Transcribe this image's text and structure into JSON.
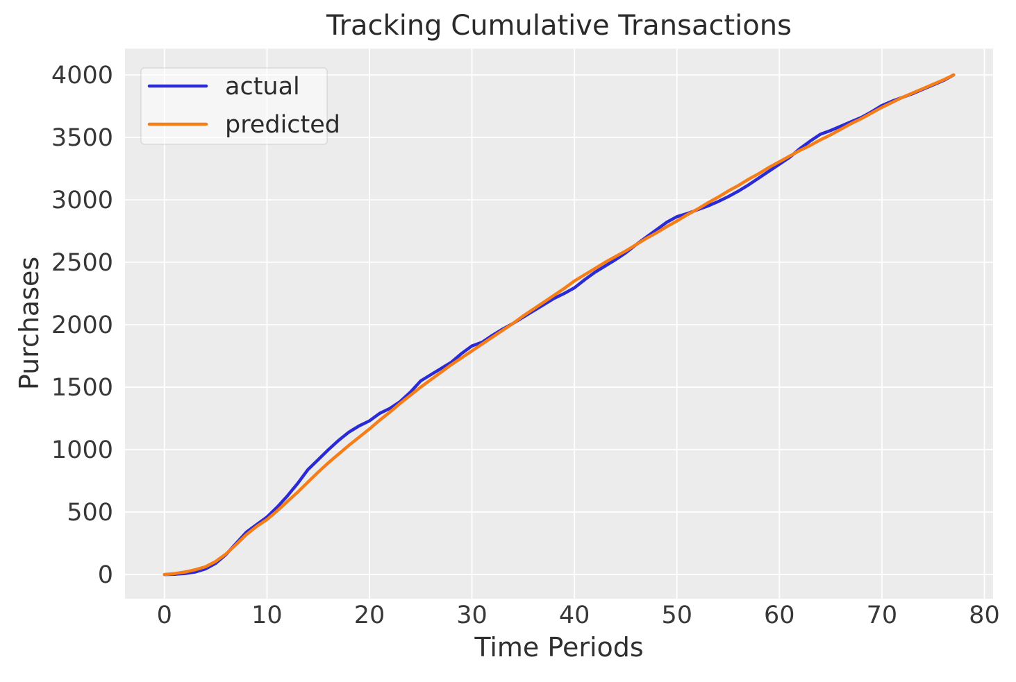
{
  "chart": {
    "title": "Tracking Cumulative Transactions",
    "xlabel": "Time Periods",
    "ylabel": "Purchases",
    "colors": {
      "figure_bg": "#ffffff",
      "plot_bg": "#ececec",
      "grid": "#ffffff",
      "actual_line": "#2b2bd6",
      "predicted_line": "#f57e19",
      "text": "#2b2b2b"
    }
  },
  "chart_data": {
    "type": "line",
    "title": "Tracking Cumulative Transactions",
    "xlabel": "Time Periods",
    "ylabel": "Purchases",
    "grid": true,
    "legend_position": "upper left",
    "xlim": [
      -3.85,
      80.85
    ],
    "ylim": [
      -194,
      4211
    ],
    "xticks": [
      0,
      10,
      20,
      30,
      40,
      50,
      60,
      70,
      80
    ],
    "yticks": [
      0,
      500,
      1000,
      1500,
      2000,
      2500,
      3000,
      3500,
      4000
    ],
    "x": [
      0,
      1,
      2,
      3,
      4,
      5,
      6,
      7,
      8,
      9,
      10,
      11,
      12,
      13,
      14,
      15,
      16,
      17,
      18,
      19,
      20,
      21,
      22,
      23,
      24,
      25,
      26,
      27,
      28,
      29,
      30,
      31,
      32,
      33,
      34,
      35,
      36,
      37,
      38,
      39,
      40,
      41,
      42,
      43,
      44,
      45,
      46,
      47,
      48,
      49,
      50,
      51,
      52,
      53,
      54,
      55,
      56,
      57,
      58,
      59,
      60,
      61,
      62,
      63,
      64,
      65,
      66,
      67,
      68,
      69,
      70,
      71,
      72,
      73,
      74,
      75,
      76,
      77
    ],
    "series": [
      {
        "name": "actual",
        "color": "#2b2bd6",
        "values": [
          0,
          2,
          8,
          20,
          45,
          90,
          160,
          250,
          340,
          400,
          460,
          540,
          630,
          730,
          840,
          920,
          1000,
          1075,
          1140,
          1190,
          1230,
          1290,
          1330,
          1385,
          1460,
          1550,
          1600,
          1650,
          1700,
          1770,
          1830,
          1860,
          1915,
          1965,
          2010,
          2060,
          2110,
          2160,
          2210,
          2250,
          2295,
          2360,
          2420,
          2470,
          2520,
          2575,
          2640,
          2700,
          2760,
          2820,
          2865,
          2890,
          2920,
          2950,
          2985,
          3025,
          3070,
          3120,
          3175,
          3230,
          3285,
          3340,
          3410,
          3470,
          3525,
          3555,
          3590,
          3625,
          3660,
          3705,
          3755,
          3790,
          3820,
          3850,
          3885,
          3920,
          3955,
          4000
        ]
      },
      {
        "name": "predicted",
        "color": "#f57e19",
        "values": [
          0,
          8,
          20,
          38,
          62,
          105,
          165,
          240,
          320,
          385,
          440,
          510,
          585,
          660,
          740,
          820,
          895,
          965,
          1035,
          1100,
          1165,
          1235,
          1300,
          1370,
          1435,
          1500,
          1560,
          1620,
          1680,
          1735,
          1790,
          1845,
          1900,
          1955,
          2010,
          2070,
          2125,
          2180,
          2235,
          2290,
          2350,
          2400,
          2450,
          2500,
          2545,
          2590,
          2640,
          2690,
          2735,
          2785,
          2830,
          2880,
          2925,
          2975,
          3020,
          3070,
          3115,
          3165,
          3210,
          3260,
          3305,
          3350,
          3395,
          3435,
          3480,
          3520,
          3565,
          3610,
          3650,
          3695,
          3740,
          3780,
          3820,
          3855,
          3890,
          3925,
          3960,
          4000
        ]
      }
    ]
  }
}
